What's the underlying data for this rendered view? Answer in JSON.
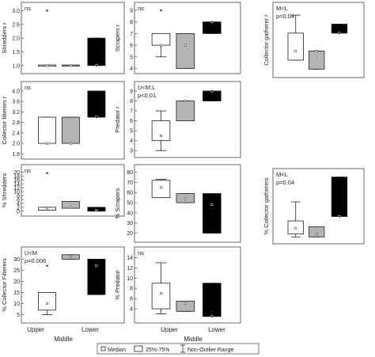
{
  "chart_data": [
    {
      "type": "boxplot",
      "ylabel": "Shredders r",
      "annotation": [
        "ns"
      ],
      "yticks": [
        "1.0",
        "1.5",
        "2.0",
        "2.5",
        "3.0"
      ],
      "ylim": [
        0.85,
        3.1
      ],
      "groups": [
        {
          "category": "Upper",
          "median": 1.0,
          "q1": 1.0,
          "q3": 1.0,
          "min": 1.0,
          "max": 1.0,
          "outliers": [
            3.0
          ]
        },
        {
          "category": "Middle",
          "median": 1.0,
          "q1": 1.0,
          "q3": 1.0,
          "min": 1.0,
          "max": 1.0,
          "outliers": []
        },
        {
          "category": "Lower",
          "median": 1.0,
          "q1": 1.0,
          "q3": 2.0,
          "min": 1.0,
          "max": 2.0,
          "outliers": []
        }
      ]
    },
    {
      "type": "boxplot",
      "ylabel": "Scrapers r",
      "annotation": [
        "ns"
      ],
      "yticks": [
        "4",
        "5",
        "6",
        "7",
        "8",
        "9"
      ],
      "ylim": [
        3.9,
        9.2
      ],
      "groups": [
        {
          "category": "Upper",
          "median": 6.0,
          "q1": 6.0,
          "q3": 7.0,
          "min": 5.0,
          "max": 7.0,
          "outliers": [
            9.0
          ]
        },
        {
          "category": "Middle",
          "median": 6.0,
          "q1": 4.0,
          "q3": 7.0,
          "min": 4.0,
          "max": 7.0,
          "outliers": []
        },
        {
          "category": "Lower",
          "median": 8.0,
          "q1": 7.0,
          "q3": 8.0,
          "min": 7.0,
          "max": 8.0,
          "outliers": []
        }
      ]
    },
    {
      "type": "boxplot",
      "ylabel": "Collector gatherer r",
      "annotation": [
        "M<L",
        "p=0.04"
      ],
      "yticks": [],
      "ylim": [
        2.5,
        9.8
      ],
      "groups": [
        {
          "category": "Upper",
          "median": 5.0,
          "q1": 4.0,
          "q3": 7.0,
          "min": 4.0,
          "max": 9.0,
          "outliers": []
        },
        {
          "category": "Middle",
          "median": 5.0,
          "q1": 3.0,
          "q3": 5.0,
          "min": 3.0,
          "max": 5.0,
          "outliers": []
        },
        {
          "category": "Lower",
          "median": 7.0,
          "q1": 7.0,
          "q3": 8.0,
          "min": 7.0,
          "max": 8.0,
          "outliers": []
        }
      ]
    },
    {
      "type": "boxplot",
      "ylabel": "Collector filterers r",
      "annotation": [
        "ns"
      ],
      "yticks": [
        "1.6",
        "2.0",
        "2.4",
        "2.8",
        "3.2",
        "3.6",
        "4.0"
      ],
      "ylim": [
        1.55,
        4.15
      ],
      "groups": [
        {
          "category": "Upper",
          "median": 2.0,
          "q1": 2.0,
          "q3": 3.0,
          "min": 2.0,
          "max": 3.0,
          "outliers": []
        },
        {
          "category": "Middle",
          "median": 2.0,
          "q1": 2.0,
          "q3": 3.0,
          "min": 2.0,
          "max": 3.0,
          "outliers": []
        },
        {
          "category": "Lower",
          "median": 3.0,
          "q1": 3.0,
          "q3": 4.0,
          "min": 3.0,
          "max": 4.0,
          "outliers": []
        }
      ]
    },
    {
      "type": "boxplot",
      "ylabel": "Predator r",
      "annotation": [
        "U<M;L",
        "p<0.01"
      ],
      "yticks": [
        "3",
        "4",
        "5",
        "6",
        "7",
        "8",
        "9"
      ],
      "ylim": [
        2.7,
        9.4
      ],
      "groups": [
        {
          "category": "Upper",
          "median": 4.5,
          "q1": 4.0,
          "q3": 6.0,
          "min": 3.0,
          "max": 7.0,
          "outliers": []
        },
        {
          "category": "Middle",
          "median": 8.0,
          "q1": 6.0,
          "q3": 8.0,
          "min": 6.0,
          "max": 8.0,
          "outliers": []
        },
        {
          "category": "Lower",
          "median": 9.0,
          "q1": 8.0,
          "q3": 9.0,
          "min": 8.0,
          "max": 9.0,
          "outliers": []
        }
      ]
    },
    {
      "type": "boxplot",
      "ylabel": "% Shredders",
      "annotation": [
        "ns"
      ],
      "yticks": [
        "0",
        "2",
        "4",
        "6",
        "8",
        "10",
        "12",
        "14",
        "16",
        "18",
        "20"
      ],
      "ylim": [
        -0.5,
        21
      ],
      "groups": [
        {
          "category": "Upper",
          "median": 1.0,
          "q1": 0.5,
          "q3": 2.0,
          "min": 0.5,
          "max": 2.0,
          "outliers": [
            19.5
          ]
        },
        {
          "category": "Middle",
          "median": 2.0,
          "q1": 1.5,
          "q3": 5.0,
          "min": 1.5,
          "max": 5.0,
          "outliers": []
        },
        {
          "category": "Lower",
          "median": 0.5,
          "q1": 0.0,
          "q3": 2.0,
          "min": 0.0,
          "max": 2.0,
          "outliers": []
        }
      ]
    },
    {
      "type": "boxplot",
      "ylabel": "% Scrapers",
      "annotation": [],
      "yticks": [
        "20",
        "30",
        "40",
        "50",
        "60",
        "70",
        "80"
      ],
      "ylim": [
        15,
        82
      ],
      "groups": [
        {
          "category": "Upper",
          "median": 65,
          "q1": 55,
          "q3": 72,
          "min": 55,
          "max": 73,
          "outliers": []
        },
        {
          "category": "Middle",
          "median": 54,
          "q1": 50,
          "q3": 59,
          "min": 50,
          "max": 59,
          "outliers": []
        },
        {
          "category": "Lower",
          "median": 48,
          "q1": 20,
          "q3": 59,
          "min": 20,
          "max": 59,
          "outliers": []
        }
      ]
    },
    {
      "type": "boxplot",
      "ylabel": "% Collector gatherers",
      "annotation": [
        "M<L",
        "p=0.04"
      ],
      "yticks": [],
      "ylim": [
        3,
        48
      ],
      "groups": [
        {
          "category": "Upper",
          "median": 11,
          "q1": 7,
          "q3": 16,
          "min": 5,
          "max": 29,
          "outliers": []
        },
        {
          "category": "Middle",
          "median": 7,
          "q1": 5,
          "q3": 12,
          "min": 5,
          "max": 12,
          "outliers": []
        },
        {
          "category": "Lower",
          "median": 19,
          "q1": 19,
          "q3": 46,
          "min": 19,
          "max": 46,
          "outliers": []
        }
      ]
    },
    {
      "type": "boxplot",
      "ylabel": "% Collector Filterers",
      "annotation": [
        "U<M",
        "p=0.006"
      ],
      "yticks": [
        "5",
        "10",
        "15",
        "20",
        "25",
        "30"
      ],
      "ylim": [
        3,
        33
      ],
      "groups": [
        {
          "category": "Upper",
          "median": 10,
          "q1": 7,
          "q3": 15,
          "min": 5,
          "max": 15,
          "outliers": [
            27
          ]
        },
        {
          "category": "Middle",
          "median": 31,
          "q1": 30,
          "q3": 32,
          "min": 30,
          "max": 32,
          "outliers": []
        },
        {
          "category": "Lower",
          "median": 27,
          "q1": 14,
          "q3": 30,
          "min": 14,
          "max": 30,
          "outliers": []
        }
      ]
    },
    {
      "type": "boxplot",
      "ylabel": "% Predator",
      "annotation": [
        "ns"
      ],
      "yticks": [
        "4",
        "6",
        "8",
        "10",
        "12",
        "14"
      ],
      "ylim": [
        2,
        15
      ],
      "groups": [
        {
          "category": "Upper",
          "median": 7,
          "q1": 4,
          "q3": 9,
          "min": 3,
          "max": 13,
          "outliers": []
        },
        {
          "category": "Middle",
          "median": 5,
          "q1": 3.5,
          "q3": 5.5,
          "min": 3.5,
          "max": 5.5,
          "outliers": []
        },
        {
          "category": "Lower",
          "median": 2.5,
          "q1": 2.5,
          "q3": 9,
          "min": 2.5,
          "max": 9,
          "outliers": []
        }
      ]
    }
  ],
  "x_axis": {
    "categories": [
      "Upper",
      "Middle",
      "Lower"
    ],
    "label": "Middle"
  },
  "legend": {
    "items": [
      {
        "symbol": "median-square",
        "label": "Median"
      },
      {
        "symbol": "box",
        "label": "25%-75%"
      },
      {
        "symbol": "whisker",
        "label": "Non-Outlier Range"
      }
    ]
  },
  "colors": {
    "Upper": "#ffffff",
    "Middle": "#b4b4b4",
    "Lower": "#000000",
    "axis": "#444444",
    "text": "#222222"
  }
}
